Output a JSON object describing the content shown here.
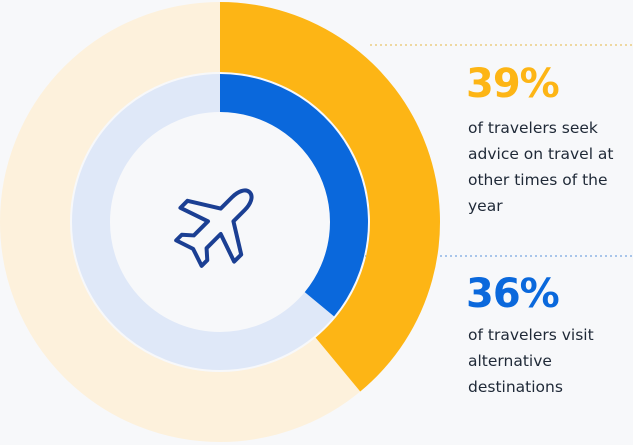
{
  "chart_data": {
    "type": "donut",
    "series": [
      {
        "name": "of travelers seek advice on travel at other times of the year",
        "color": "#fdb515",
        "values": [
          39
        ],
        "value_labels": [
          "39%"
        ]
      },
      {
        "name": "of travelers visit alternative destinations",
        "color": "#0a68dc",
        "values": [
          36
        ],
        "value_labels": [
          "36%"
        ]
      }
    ]
  }
}
